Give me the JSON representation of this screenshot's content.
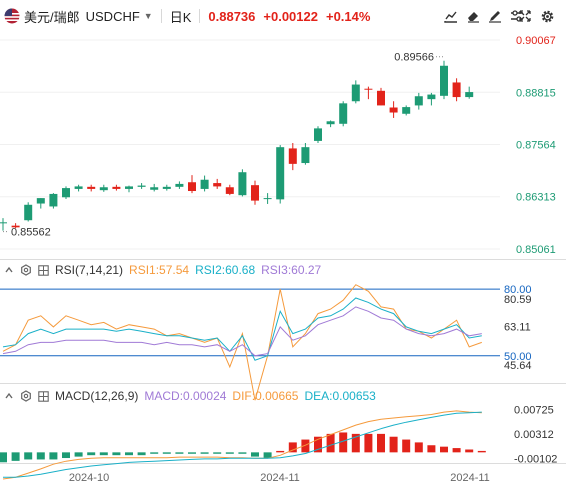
{
  "toolbar": {
    "pair": "美元/瑞郎",
    "symbol": "USDCHF",
    "period": "日K",
    "last_price": "0.88736",
    "change": "+0.00122",
    "change_pct": "+0.14%"
  },
  "colors": {
    "up": "#1d9b74",
    "down": "#e2231a",
    "blue_axis": "#1565c0"
  },
  "main_axis_labels": [
    "0.90067",
    "0.88815",
    "0.87564",
    "0.86313",
    "0.85061"
  ],
  "main_annotations": {
    "high": "0.89566",
    "low": "0.85562"
  },
  "rsi": {
    "label": "RSI(7,14,21)",
    "rsi1": "RSI1:57.54",
    "rsi2": "RSI2:60.68",
    "rsi3": "RSI3:60.27",
    "axis_labels": [
      "80.00",
      "80.59",
      "63.11",
      "50.00",
      "45.64"
    ]
  },
  "macd": {
    "label": "MACD(12,26,9)",
    "macd": "MACD:0.00024",
    "dif": "DIF:0.00665",
    "dea": "DEA:0.00653",
    "axis_labels": [
      "0.00725",
      "0.00312",
      "-0.00102"
    ]
  },
  "x_axis_labels": [
    "2024-10",
    "2024-11",
    "2024-11"
  ],
  "chart_data": {
    "type": "candlestick",
    "candles": [
      {
        "o": 0.8568,
        "h": 0.858,
        "l": 0.855,
        "c": 0.857
      },
      {
        "o": 0.8562,
        "h": 0.8568,
        "l": 0.8556,
        "c": 0.8558
      },
      {
        "o": 0.8575,
        "h": 0.8618,
        "l": 0.8572,
        "c": 0.8612
      },
      {
        "o": 0.8615,
        "h": 0.8628,
        "l": 0.8603,
        "c": 0.8628
      },
      {
        "o": 0.8608,
        "h": 0.864,
        "l": 0.8603,
        "c": 0.8638
      },
      {
        "o": 0.863,
        "h": 0.8656,
        "l": 0.8626,
        "c": 0.8652
      },
      {
        "o": 0.865,
        "h": 0.866,
        "l": 0.8644,
        "c": 0.8656
      },
      {
        "o": 0.8655,
        "h": 0.866,
        "l": 0.8644,
        "c": 0.865
      },
      {
        "o": 0.8647,
        "h": 0.866,
        "l": 0.8643,
        "c": 0.8654
      },
      {
        "o": 0.8655,
        "h": 0.866,
        "l": 0.8646,
        "c": 0.865
      },
      {
        "o": 0.865,
        "h": 0.8658,
        "l": 0.8642,
        "c": 0.8656
      },
      {
        "o": 0.8655,
        "h": 0.8664,
        "l": 0.865,
        "c": 0.8658
      },
      {
        "o": 0.8648,
        "h": 0.8662,
        "l": 0.8644,
        "c": 0.8654
      },
      {
        "o": 0.865,
        "h": 0.866,
        "l": 0.8646,
        "c": 0.8655
      },
      {
        "o": 0.8655,
        "h": 0.8668,
        "l": 0.865,
        "c": 0.8662
      },
      {
        "o": 0.8666,
        "h": 0.8683,
        "l": 0.864,
        "c": 0.8645
      },
      {
        "o": 0.865,
        "h": 0.8682,
        "l": 0.8644,
        "c": 0.8672
      },
      {
        "o": 0.8664,
        "h": 0.8674,
        "l": 0.865,
        "c": 0.8656
      },
      {
        "o": 0.8654,
        "h": 0.866,
        "l": 0.8635,
        "c": 0.8638
      },
      {
        "o": 0.8635,
        "h": 0.8697,
        "l": 0.8632,
        "c": 0.869
      },
      {
        "o": 0.8659,
        "h": 0.867,
        "l": 0.8612,
        "c": 0.8622
      },
      {
        "o": 0.8628,
        "h": 0.864,
        "l": 0.8614,
        "c": 0.8628
      },
      {
        "o": 0.8625,
        "h": 0.8755,
        "l": 0.8615,
        "c": 0.875
      },
      {
        "o": 0.8747,
        "h": 0.876,
        "l": 0.8695,
        "c": 0.871
      },
      {
        "o": 0.8712,
        "h": 0.876,
        "l": 0.8708,
        "c": 0.875
      },
      {
        "o": 0.8765,
        "h": 0.88,
        "l": 0.876,
        "c": 0.8795
      },
      {
        "o": 0.8805,
        "h": 0.8814,
        "l": 0.8798,
        "c": 0.8812
      },
      {
        "o": 0.8806,
        "h": 0.886,
        "l": 0.88,
        "c": 0.8855
      },
      {
        "o": 0.886,
        "h": 0.891,
        "l": 0.8855,
        "c": 0.89
      },
      {
        "o": 0.889,
        "h": 0.8895,
        "l": 0.8865,
        "c": 0.8888
      },
      {
        "o": 0.8885,
        "h": 0.8892,
        "l": 0.885,
        "c": 0.885
      },
      {
        "o": 0.8845,
        "h": 0.886,
        "l": 0.882,
        "c": 0.8833
      },
      {
        "o": 0.883,
        "h": 0.885,
        "l": 0.8826,
        "c": 0.8846
      },
      {
        "o": 0.885,
        "h": 0.888,
        "l": 0.884,
        "c": 0.8872
      },
      {
        "o": 0.8865,
        "h": 0.888,
        "l": 0.885,
        "c": 0.8876
      },
      {
        "o": 0.8873,
        "h": 0.8957,
        "l": 0.8865,
        "c": 0.8945
      },
      {
        "o": 0.8905,
        "h": 0.8915,
        "l": 0.886,
        "c": 0.887
      },
      {
        "o": 0.887,
        "h": 0.8895,
        "l": 0.8866,
        "c": 0.8882
      }
    ],
    "rsi1": [
      52,
      55,
      66,
      68,
      63,
      68,
      66,
      64,
      65,
      62,
      64,
      63,
      62,
      59,
      60,
      58,
      56,
      58,
      45,
      60,
      30,
      50,
      80,
      54,
      60,
      69,
      71,
      75,
      82,
      79,
      72,
      71,
      62,
      61,
      58,
      62,
      66,
      54,
      56
    ],
    "rsi2": [
      54,
      55,
      60,
      62,
      60,
      62,
      62,
      62,
      62,
      61,
      62,
      61,
      60,
      59,
      59,
      58,
      57,
      58,
      52,
      59,
      48,
      50,
      70,
      60,
      62,
      67,
      68,
      71,
      76,
      74,
      71,
      69,
      63,
      61,
      60,
      62,
      64,
      58,
      59
    ],
    "rsi3": [
      51,
      52,
      55,
      56,
      56,
      57,
      57,
      57,
      57,
      56,
      56,
      56,
      55,
      56,
      55,
      55,
      54,
      55,
      52,
      55,
      50,
      51,
      63,
      57,
      59,
      64,
      66,
      68,
      72,
      70,
      67,
      66,
      62,
      60,
      59,
      60,
      62,
      59,
      60
    ],
    "dif": [
      -0.0045,
      -0.0042,
      -0.0035,
      -0.0028,
      -0.002,
      -0.0015,
      -0.0012,
      -0.001,
      -0.0009,
      -0.0009,
      -0.0009,
      -0.0009,
      -0.0009,
      -0.0009,
      -0.0008,
      -0.0008,
      -0.0008,
      -0.0008,
      -0.0009,
      -0.0009,
      -0.001,
      -0.001,
      -0.0005,
      0.0004,
      0.0012,
      0.0022,
      0.003,
      0.0038,
      0.0046,
      0.0052,
      0.0056,
      0.0058,
      0.006,
      0.0062,
      0.0064,
      0.0068,
      0.007,
      0.0068,
      0.0067
    ],
    "dea": [
      -0.0042,
      -0.0042,
      -0.004,
      -0.0037,
      -0.0033,
      -0.0029,
      -0.0026,
      -0.0023,
      -0.0021,
      -0.0019,
      -0.0017,
      -0.0016,
      -0.0015,
      -0.0014,
      -0.0013,
      -0.0012,
      -0.0011,
      -0.0011,
      -0.001,
      -0.001,
      -0.001,
      -0.001,
      -0.0009,
      -0.0006,
      -0.0002,
      0.0005,
      0.0012,
      0.0019,
      0.0026,
      0.0033,
      0.004,
      0.0046,
      0.0051,
      0.0055,
      0.0059,
      0.0063,
      0.0066,
      0.0067,
      0.0068
    ],
    "macd_hist": [
      -0.0007,
      -0.0006,
      -0.0005,
      -0.0005,
      -0.0005,
      -0.0004,
      -0.0003,
      -0.0002,
      -0.0002,
      -0.0002,
      -0.0002,
      -0.0002,
      -0.0001,
      -0.0001,
      -0.0001,
      -0.0001,
      -0.0001,
      -0.0001,
      -0.0001,
      -0.0001,
      -0.0003,
      -0.0004,
      0.0001,
      0.0007,
      0.0009,
      0.0011,
      0.0013,
      0.0014,
      0.0013,
      0.0013,
      0.0013,
      0.0011,
      0.0009,
      0.0007,
      0.0005,
      0.0004,
      0.0003,
      0.0002,
      0.0001
    ]
  }
}
